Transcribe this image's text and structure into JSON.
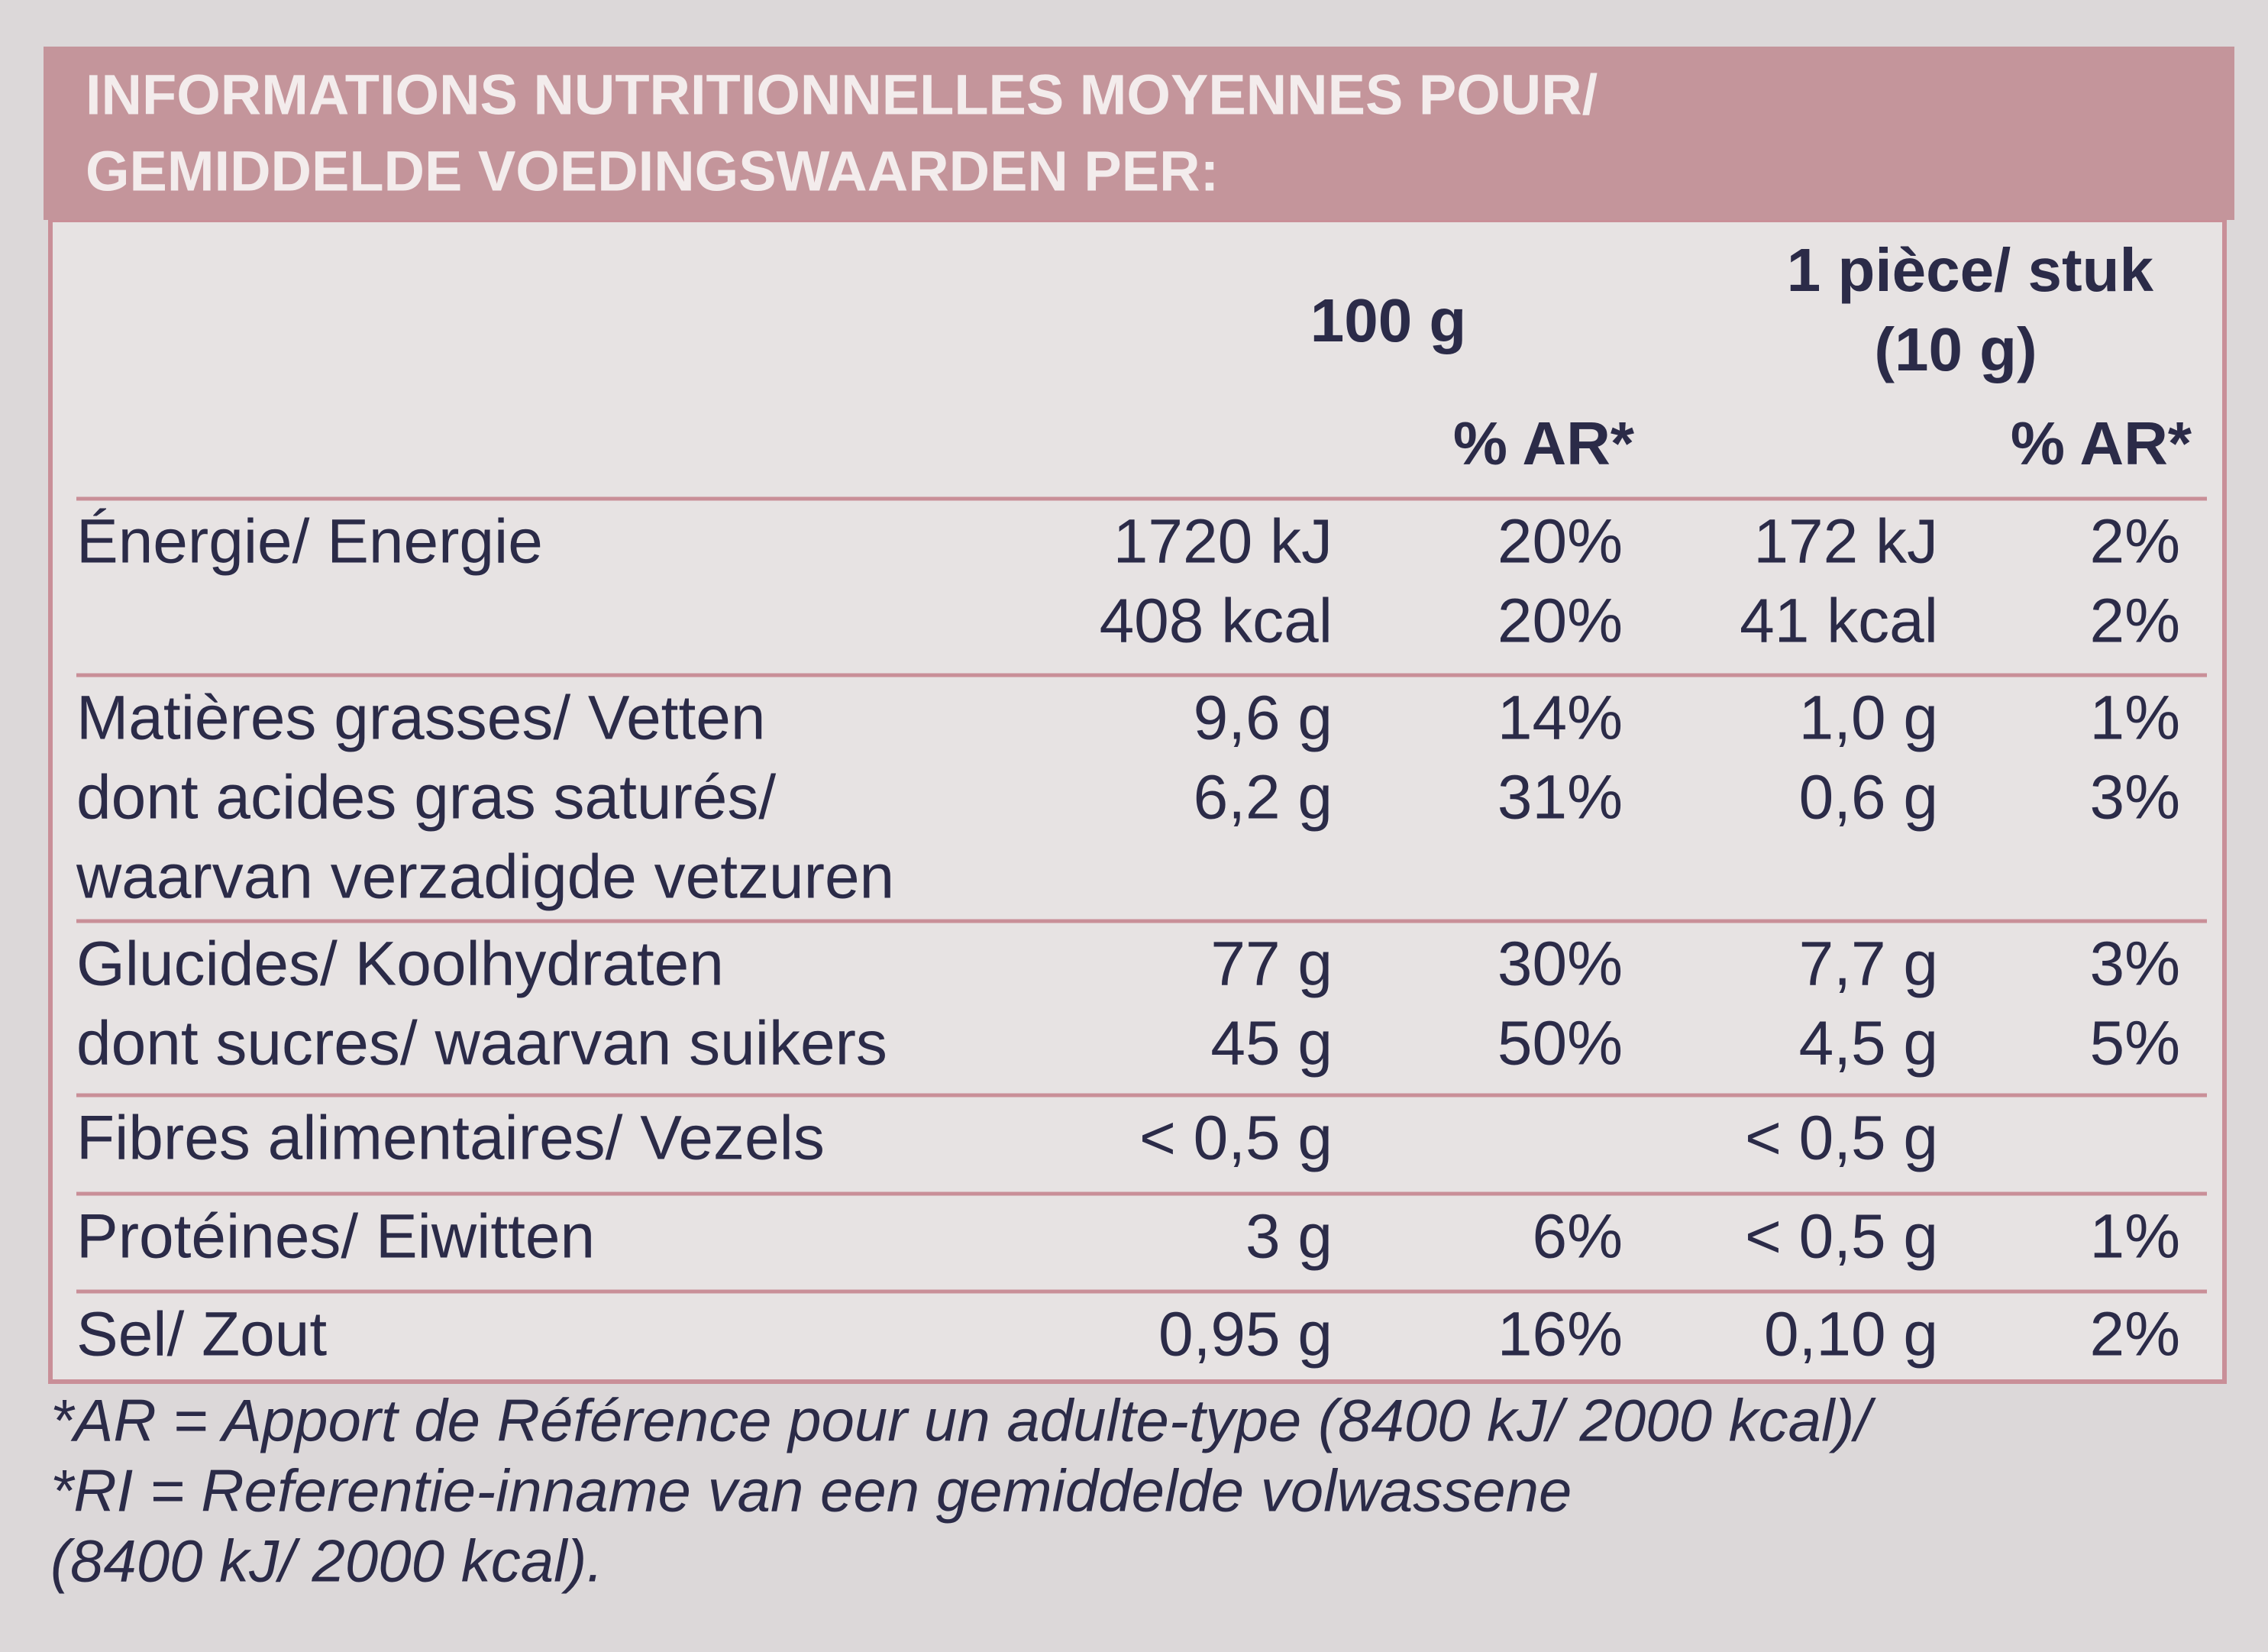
{
  "header": {
    "lines": [
      "INFORMATIONS NUTRITIONNELLES MOYENNES POUR/",
      "GEMIDDELDE VOEDINGSWAARDEN PER:"
    ]
  },
  "table": {
    "columns": {
      "per_100g": "100 g",
      "per_piece": [
        "1 pièce/ stuk",
        "(10 g)"
      ],
      "ar": [
        "% AR*",
        "% AR*"
      ]
    },
    "groups": [
      {
        "items": [
          {
            "label": [
              "Énergie/ Energie"
            ],
            "values": [
              [
                "1720 kJ",
                "20%",
                "172 kJ",
                "2%"
              ],
              [
                "408 kcal",
                "20%",
                "41 kcal",
                "2%"
              ]
            ]
          }
        ]
      },
      {
        "items": [
          {
            "label": [
              "Matières grasses/ Vetten"
            ],
            "values": [
              [
                "9,6 g",
                "14%",
                "1,0 g",
                "1%"
              ]
            ]
          },
          {
            "label": [
              "dont acides gras saturés/",
              "waarvan verzadigde vetzuren"
            ],
            "values": [
              [
                "6,2 g",
                "31%",
                "0,6 g",
                "3%"
              ]
            ]
          }
        ]
      },
      {
        "items": [
          {
            "label": [
              "Glucides/ Koolhydraten"
            ],
            "values": [
              [
                "77 g",
                "30%",
                "7,7 g",
                "3%"
              ]
            ]
          },
          {
            "label": [
              "dont sucres/ waarvan suikers"
            ],
            "values": [
              [
                "45 g",
                "50%",
                "4,5 g",
                "5%"
              ]
            ]
          }
        ]
      },
      {
        "items": [
          {
            "label": [
              "Fibres alimentaires/ Vezels"
            ],
            "values": [
              [
                "< 0,5 g",
                null,
                "< 0,5 g",
                null
              ]
            ]
          }
        ]
      },
      {
        "items": [
          {
            "label": [
              "Protéines/ Eiwitten"
            ],
            "values": [
              [
                "3 g",
                "6%",
                "< 0,5 g",
                "1%"
              ]
            ]
          }
        ]
      },
      {
        "items": [
          {
            "label": [
              "Sel/ Zout"
            ],
            "values": [
              [
                "0,95 g",
                "16%",
                "0,10 g",
                "2%"
              ]
            ]
          }
        ]
      }
    ]
  },
  "footnote": {
    "lines": [
      "*AR = Apport de Référence pour un adulte-type (8400 kJ/ 2000 kcal)/",
      "*RI = Referentie-inname van een gemiddelde volwassene",
      "(8400 kJ/ 2000 kcal)."
    ]
  }
}
